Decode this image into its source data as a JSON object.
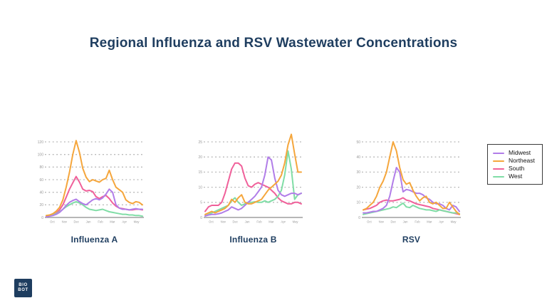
{
  "title": "Regional Influenza and RSV Wastewater Concentrations",
  "colors": {
    "accent_navy": "#1e3d5f",
    "gridline": "#b3b3b3",
    "axis": "#8c8c8c",
    "tick_text": "#999999"
  },
  "legend": {
    "entries": [
      {
        "label": "Midwest",
        "color": "#b17de8"
      },
      {
        "label": "Northeast",
        "color": "#f5a63c"
      },
      {
        "label": "South",
        "color": "#f0609a"
      },
      {
        "label": "West",
        "color": "#80dda6"
      }
    ]
  },
  "x_tick_labels": [
    "Oct",
    "Nov",
    "Dec",
    "Jan",
    "Feb",
    "Mar",
    "Apr",
    "May"
  ],
  "chart_data": [
    {
      "type": "line",
      "title": "Influenza A",
      "ylabel": "",
      "yticks": [
        0,
        20,
        40,
        60,
        80,
        100,
        120
      ],
      "ylim": [
        0,
        120
      ],
      "grid": "dotted-horizontal",
      "series": [
        {
          "name": "South",
          "values": [
            2,
            3,
            4,
            7,
            12,
            20,
            32,
            45,
            55,
            65,
            56,
            45,
            42,
            43,
            41,
            33,
            30,
            33,
            35,
            30,
            23,
            18,
            15,
            14,
            13,
            12,
            12,
            13,
            13,
            12
          ]
        },
        {
          "name": "West",
          "values": [
            3,
            3,
            4,
            6,
            9,
            13,
            17,
            20,
            23,
            25,
            23,
            20,
            16,
            13,
            12,
            11,
            12,
            13,
            11,
            9,
            8,
            7,
            6,
            5,
            5,
            4,
            4,
            3,
            3,
            2
          ]
        },
        {
          "name": "Midwest",
          "values": [
            1,
            2,
            3,
            5,
            8,
            13,
            19,
            24,
            27,
            29,
            25,
            22,
            20,
            24,
            28,
            30,
            28,
            31,
            37,
            45,
            40,
            20,
            15,
            13,
            13,
            12,
            13,
            14,
            13,
            13
          ]
        },
        {
          "name": "Northeast",
          "values": [
            3,
            4,
            6,
            10,
            16,
            28,
            48,
            72,
            100,
            122,
            103,
            78,
            64,
            57,
            60,
            58,
            56,
            60,
            62,
            75,
            60,
            48,
            44,
            40,
            28,
            24,
            22,
            25,
            24,
            20
          ]
        }
      ]
    },
    {
      "type": "line",
      "title": "Influenza B",
      "ylabel": "",
      "yticks": [
        0,
        5,
        10,
        15,
        20,
        25
      ],
      "ylim": [
        0,
        28
      ],
      "grid": "dotted-horizontal",
      "series": [
        {
          "name": "South",
          "values": [
            2,
            3.5,
            4,
            4,
            4,
            5,
            8,
            12,
            16,
            18,
            18,
            17,
            13,
            10.5,
            10,
            11,
            11.5,
            11,
            10.5,
            10,
            9,
            8,
            6.5,
            5.5,
            5,
            4.5,
            4.5,
            5,
            5,
            4.5
          ]
        },
        {
          "name": "West",
          "values": [
            0.5,
            1,
            1.5,
            2,
            2.5,
            3,
            3.5,
            4,
            5.5,
            6.5,
            5,
            4,
            4.5,
            5,
            5,
            5.2,
            5,
            5,
            5.5,
            5,
            5.5,
            6,
            7,
            9,
            14,
            22,
            16,
            6,
            7.5,
            8
          ]
        },
        {
          "name": "Midwest",
          "values": [
            0.5,
            0.8,
            1,
            1,
            1.2,
            1.5,
            2,
            2.5,
            3.5,
            3,
            2.5,
            3,
            4,
            5,
            6,
            7,
            8.5,
            10,
            14,
            20,
            19,
            13,
            9,
            7.5,
            7,
            7.5,
            8,
            8,
            7.5,
            8
          ]
        },
        {
          "name": "Northeast",
          "values": [
            1,
            1.5,
            2,
            1.5,
            2,
            2.5,
            3,
            4,
            6,
            5,
            6.5,
            7.5,
            5,
            4.5,
            4.5,
            5,
            5.5,
            6,
            7.5,
            9,
            10,
            11,
            12,
            14,
            18,
            24,
            27.5,
            21,
            15,
            15
          ]
        }
      ]
    },
    {
      "type": "line",
      "title": "RSV",
      "ylabel": "",
      "yticks": [
        0,
        10,
        20,
        30,
        40,
        50
      ],
      "ylim": [
        0,
        52
      ],
      "grid": "dotted-horizontal",
      "series": [
        {
          "name": "South",
          "values": [
            5,
            5.5,
            6,
            7,
            8,
            10,
            11,
            11.5,
            11,
            11,
            11.5,
            12,
            13,
            11.5,
            11,
            10,
            9,
            8.5,
            8,
            7.5,
            7,
            6,
            5.5,
            5,
            4.5,
            4,
            3.5,
            3,
            2.5,
            2
          ]
        },
        {
          "name": "West",
          "values": [
            2,
            2.5,
            3,
            3.5,
            4,
            4.5,
            5,
            5.5,
            6,
            7,
            6.5,
            8,
            9.5,
            7,
            6.5,
            8,
            7,
            6,
            5.5,
            5,
            5,
            4.5,
            4,
            5,
            4.5,
            4,
            3.5,
            3,
            3,
            2.5
          ]
        },
        {
          "name": "Midwest",
          "values": [
            3,
            3,
            3.5,
            4,
            4,
            5,
            6,
            8,
            14,
            24,
            33,
            30,
            17,
            18.5,
            18,
            17,
            16,
            16,
            15,
            13,
            12,
            10,
            9,
            9,
            8,
            6,
            5,
            8,
            7,
            4
          ]
        },
        {
          "name": "Northeast",
          "values": [
            5,
            6,
            8,
            10,
            14,
            20,
            24,
            30,
            40,
            50,
            44,
            33,
            25,
            22,
            23,
            18,
            14,
            11,
            13,
            14,
            10,
            9,
            10,
            8,
            6,
            6,
            10,
            7,
            4,
            2
          ]
        }
      ]
    }
  ],
  "logo": {
    "line1": "BIO",
    "line2": "BOT"
  }
}
